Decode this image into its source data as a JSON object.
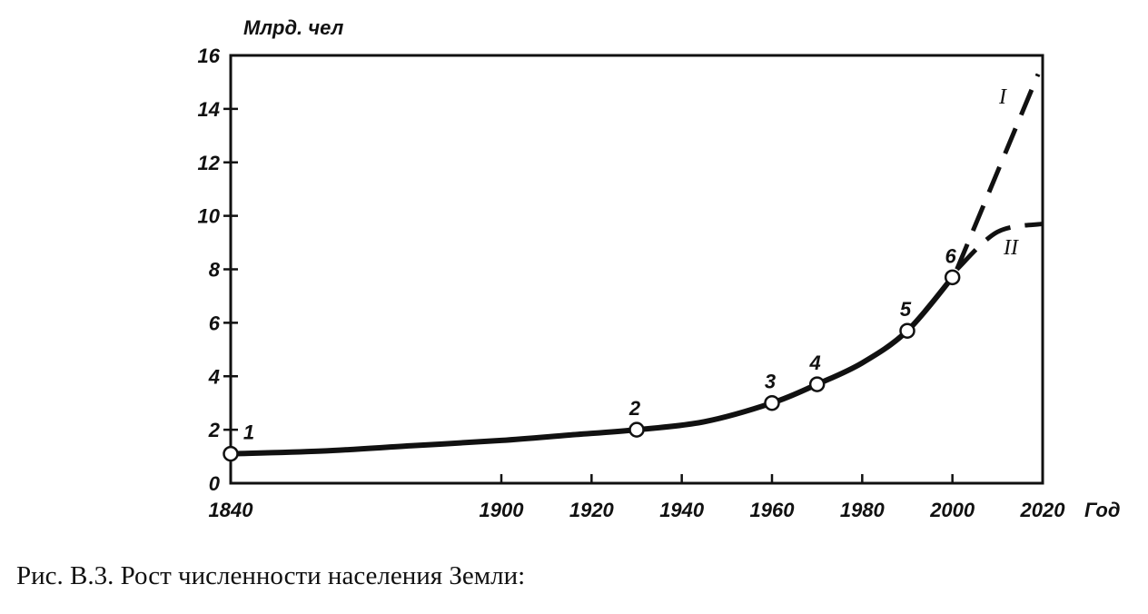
{
  "chart_data": {
    "type": "line",
    "ylabel": "Млрд. чел",
    "xlabel": "Год",
    "xlim": [
      1840,
      2020
    ],
    "ylim": [
      0,
      16
    ],
    "x_ticks": [
      1840,
      1900,
      1920,
      1940,
      1960,
      1980,
      2000,
      2020
    ],
    "y_ticks": [
      0,
      2,
      4,
      6,
      8,
      10,
      12,
      14,
      16
    ],
    "grid": false,
    "series": [
      {
        "style": "solid",
        "points": [
          {
            "x": 1840,
            "y": 1.1
          },
          {
            "x": 1860,
            "y": 1.2
          },
          {
            "x": 1880,
            "y": 1.4
          },
          {
            "x": 1900,
            "y": 1.6
          },
          {
            "x": 1915,
            "y": 1.8
          },
          {
            "x": 1930,
            "y": 2.0
          },
          {
            "x": 1945,
            "y": 2.3
          },
          {
            "x": 1960,
            "y": 3.0
          },
          {
            "x": 1970,
            "y": 3.7
          },
          {
            "x": 1980,
            "y": 4.5
          },
          {
            "x": 1990,
            "y": 5.7
          },
          {
            "x": 2000,
            "y": 7.7
          }
        ],
        "markers": [
          {
            "label": "1",
            "x": 1840,
            "y": 1.1
          },
          {
            "label": "2",
            "x": 1930,
            "y": 2.0
          },
          {
            "label": "3",
            "x": 1960,
            "y": 3.0
          },
          {
            "label": "4",
            "x": 1970,
            "y": 3.7
          },
          {
            "label": "5",
            "x": 1990,
            "y": 5.7
          },
          {
            "label": "6",
            "x": 2000,
            "y": 7.7
          }
        ]
      },
      {
        "name": "I",
        "style": "dashed",
        "points": [
          {
            "x": 2001,
            "y": 8.0
          },
          {
            "x": 2019,
            "y": 15.3
          }
        ]
      },
      {
        "name": "II",
        "style": "dashed",
        "points": [
          {
            "x": 2001,
            "y": 8.0
          },
          {
            "x": 2010,
            "y": 9.4
          },
          {
            "x": 2020,
            "y": 9.7
          }
        ]
      }
    ]
  },
  "caption": "Рис. В.3. Рост численности населения Земли:",
  "colors": {
    "ink": "#111111",
    "background": "#ffffff"
  }
}
